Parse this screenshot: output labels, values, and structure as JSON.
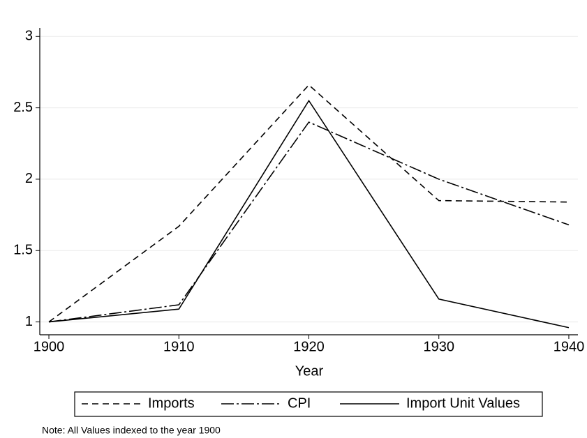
{
  "chart_data": {
    "type": "line",
    "x_label": "Year",
    "note": "Note: All Values indexed to the year 1900",
    "x": [
      1900,
      1910,
      1920,
      1930,
      1940
    ],
    "series": [
      {
        "name": "Imports",
        "color": "#000000",
        "dash": "9,6",
        "values": [
          1.0,
          1.67,
          2.66,
          1.85,
          1.84
        ]
      },
      {
        "name": "CPI",
        "color": "#000000",
        "dash": "18,4,3,4",
        "values": [
          1.0,
          1.12,
          2.4,
          2.0,
          1.68
        ]
      },
      {
        "name": "Import Unit Values",
        "color": "#000000",
        "dash": "none",
        "values": [
          1.0,
          1.09,
          2.55,
          1.16,
          0.96
        ]
      }
    ],
    "xlim": [
      1899.3,
      1940.7
    ],
    "ylim": [
      0.91,
      3.06
    ],
    "xticks": [
      1900,
      1910,
      1920,
      1930,
      1940
    ],
    "yticks": [
      1,
      1.5,
      2,
      2.5,
      3
    ],
    "grid": true
  }
}
